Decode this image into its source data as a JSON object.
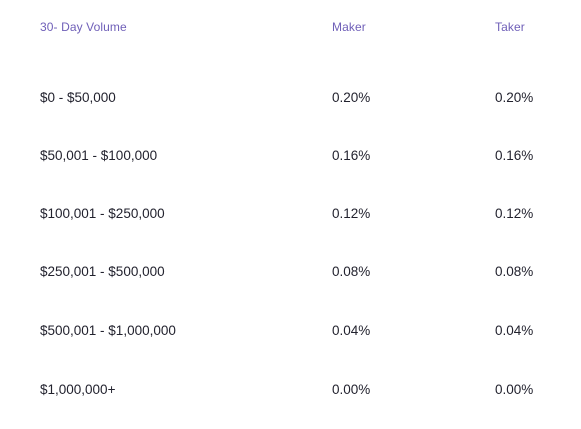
{
  "table": {
    "headers": {
      "volume": "30- Day Volume",
      "maker": "Maker",
      "taker": "Taker"
    },
    "rows": [
      {
        "volume": "$0 - $50,000",
        "maker": "0.20%",
        "taker": "0.20%"
      },
      {
        "volume": "$50,001 - $100,000",
        "maker": "0.16%",
        "taker": "0.16%"
      },
      {
        "volume": "$100,001 - $250,000",
        "maker": "0.12%",
        "taker": "0.12%"
      },
      {
        "volume": "$250,001 - $500,000",
        "maker": "0.08%",
        "taker": "0.08%"
      },
      {
        "volume": "$500,001 - $1,000,000",
        "maker": "0.04%",
        "taker": "0.04%"
      },
      {
        "volume": "$1,000,000+",
        "maker": "0.00%",
        "taker": "0.00%"
      }
    ]
  },
  "colors": {
    "header_text": "#6f5fb8",
    "body_text": "#22222e",
    "background": "#ffffff"
  }
}
